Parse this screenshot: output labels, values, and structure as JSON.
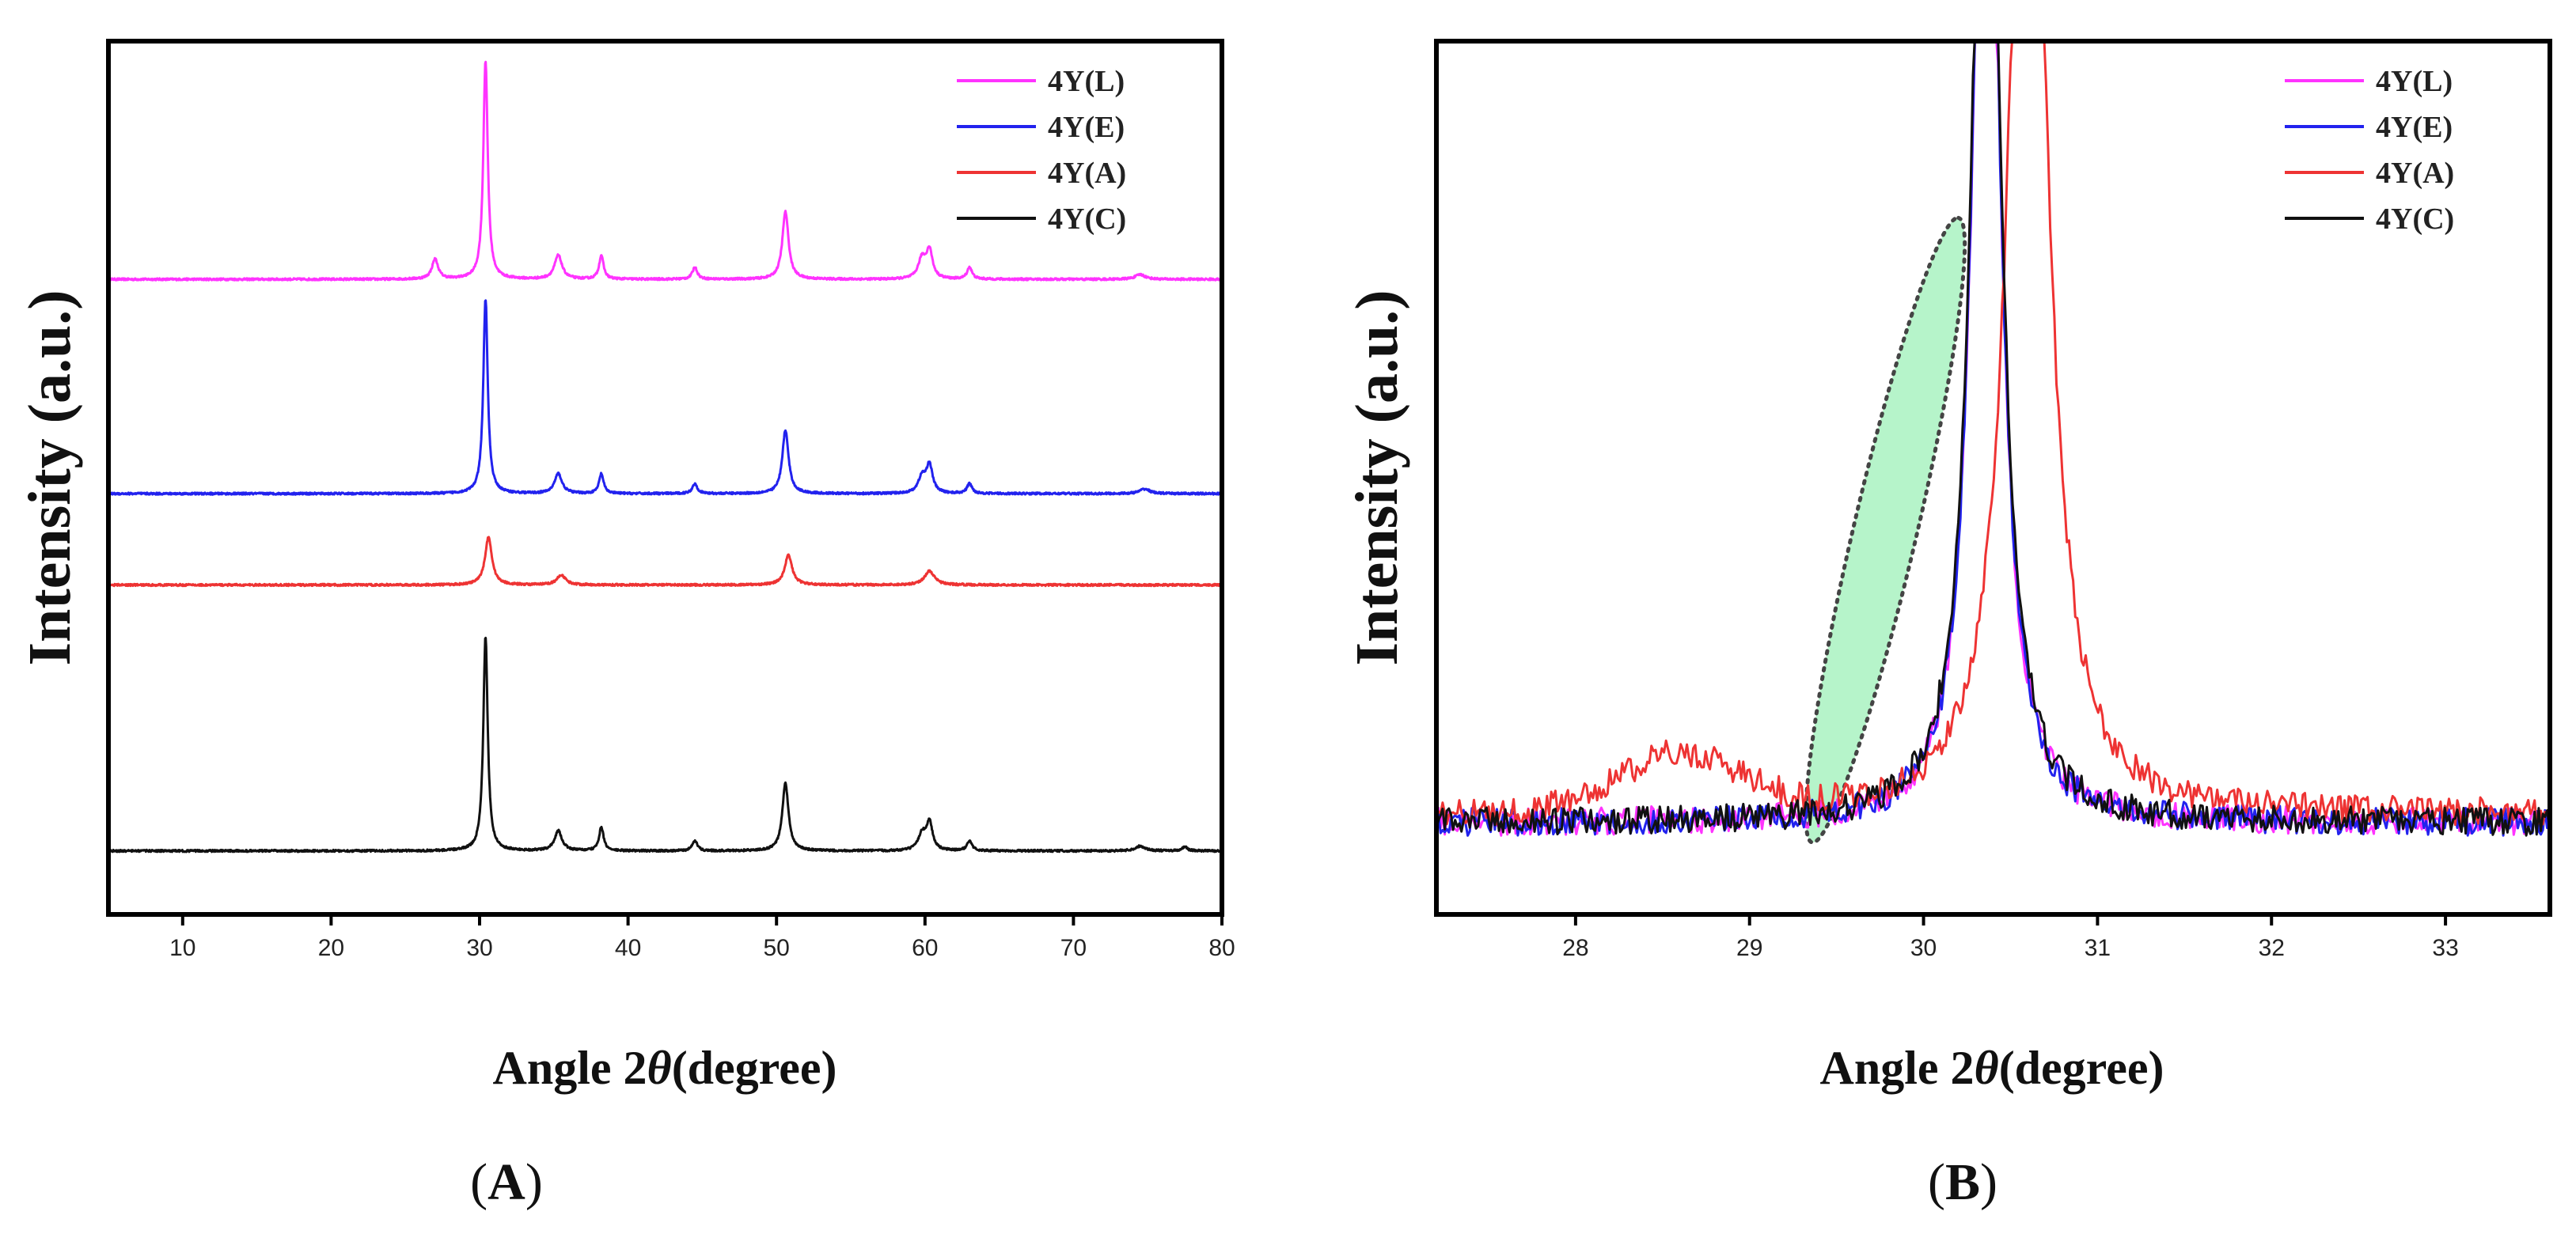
{
  "chart_data": [
    {
      "panel": "A",
      "type": "line",
      "xlabel_prefix": "Angle 2",
      "xlabel_symbol": "θ",
      "xlabel_suffix": "(degree)",
      "ylabel": "Intensity (a.u.)",
      "xlim": [
        5,
        80
      ],
      "ylim": [
        -1,
        21
      ],
      "xticks": [
        10,
        20,
        30,
        40,
        50,
        60,
        70,
        80
      ],
      "yticks_visible": false,
      "grid": false,
      "legend_position": "top-right",
      "panel_label_open": "(",
      "panel_label_letter": "A",
      "panel_label_close": ")",
      "series": [
        {
          "name": "4Y(L)",
          "color": "#ff33ff",
          "baseline": 15.0,
          "peaks": [
            [
              27.0,
              0.5,
              0.25
            ],
            [
              30.4,
              5.5,
              0.18
            ],
            [
              35.3,
              0.6,
              0.3
            ],
            [
              38.2,
              0.6,
              0.18
            ],
            [
              44.5,
              0.3,
              0.2
            ],
            [
              50.6,
              1.7,
              0.25
            ],
            [
              59.8,
              0.5,
              0.3
            ],
            [
              60.3,
              0.7,
              0.25
            ],
            [
              63.0,
              0.3,
              0.2
            ],
            [
              74.5,
              0.12,
              0.4
            ]
          ]
        },
        {
          "name": "4Y(E)",
          "color": "#2222ee",
          "baseline": 9.6,
          "peaks": [
            [
              30.4,
              4.9,
              0.18
            ],
            [
              35.3,
              0.5,
              0.3
            ],
            [
              38.2,
              0.5,
              0.18
            ],
            [
              44.5,
              0.25,
              0.2
            ],
            [
              50.6,
              1.6,
              0.25
            ],
            [
              59.8,
              0.4,
              0.3
            ],
            [
              60.3,
              0.7,
              0.25
            ],
            [
              63.0,
              0.25,
              0.2
            ],
            [
              74.8,
              0.12,
              0.4
            ]
          ]
        },
        {
          "name": "4Y(A)",
          "color": "#ee3333",
          "baseline": 7.3,
          "peaks": [
            [
              30.6,
              1.2,
              0.28
            ],
            [
              35.5,
              0.25,
              0.35
            ],
            [
              50.8,
              0.75,
              0.3
            ],
            [
              60.3,
              0.35,
              0.4
            ]
          ]
        },
        {
          "name": "4Y(C)",
          "color": "#111111",
          "baseline": 0.6,
          "peaks": [
            [
              30.4,
              5.4,
              0.18
            ],
            [
              35.3,
              0.5,
              0.3
            ],
            [
              38.2,
              0.6,
              0.18
            ],
            [
              44.5,
              0.25,
              0.2
            ],
            [
              50.6,
              1.7,
              0.25
            ],
            [
              59.8,
              0.4,
              0.3
            ],
            [
              60.3,
              0.7,
              0.25
            ],
            [
              63.0,
              0.25,
              0.2
            ],
            [
              74.5,
              0.12,
              0.4
            ],
            [
              77.5,
              0.1,
              0.2
            ]
          ]
        }
      ]
    },
    {
      "panel": "B",
      "type": "line",
      "xlabel_prefix": "Angle 2",
      "xlabel_symbol": "θ",
      "xlabel_suffix": "(degree)",
      "ylabel": "Intensity (a.u.)",
      "xlim": [
        27.2,
        33.6
      ],
      "ylim": [
        0,
        100
      ],
      "xticks": [
        28,
        29,
        30,
        31,
        32,
        33
      ],
      "yticks_visible": false,
      "grid": false,
      "legend_position": "top-right",
      "panel_label_open": "(",
      "panel_label_letter": "B",
      "panel_label_close": ")",
      "annotation": {
        "type": "ellipse",
        "fill": "#9ef0b8",
        "stroke": "dotted",
        "x_range": [
          29.38,
          30.18
        ],
        "y_range": [
          10,
          78
        ]
      },
      "series": [
        {
          "name": "4Y(L)",
          "color": "#ff33ff",
          "baseline": 10.5,
          "peak_center": 30.36,
          "peak_height": 145,
          "peak_width": 0.085
        },
        {
          "name": "4Y(E)",
          "color": "#2222ee",
          "baseline": 10.5,
          "peak_center": 30.36,
          "peak_height": 145,
          "peak_width": 0.085
        },
        {
          "name": "4Y(A)",
          "color": "#ee3333",
          "baseline": 11.5,
          "peak_center": 30.6,
          "peak_height": 145,
          "peak_width": 0.12,
          "shoulder": [
            28.6,
            6.5,
            0.35
          ]
        },
        {
          "name": "4Y(C)",
          "color": "#111111",
          "baseline": 10.5,
          "peak_center": 30.36,
          "peak_height": 145,
          "peak_width": 0.09
        }
      ]
    }
  ]
}
